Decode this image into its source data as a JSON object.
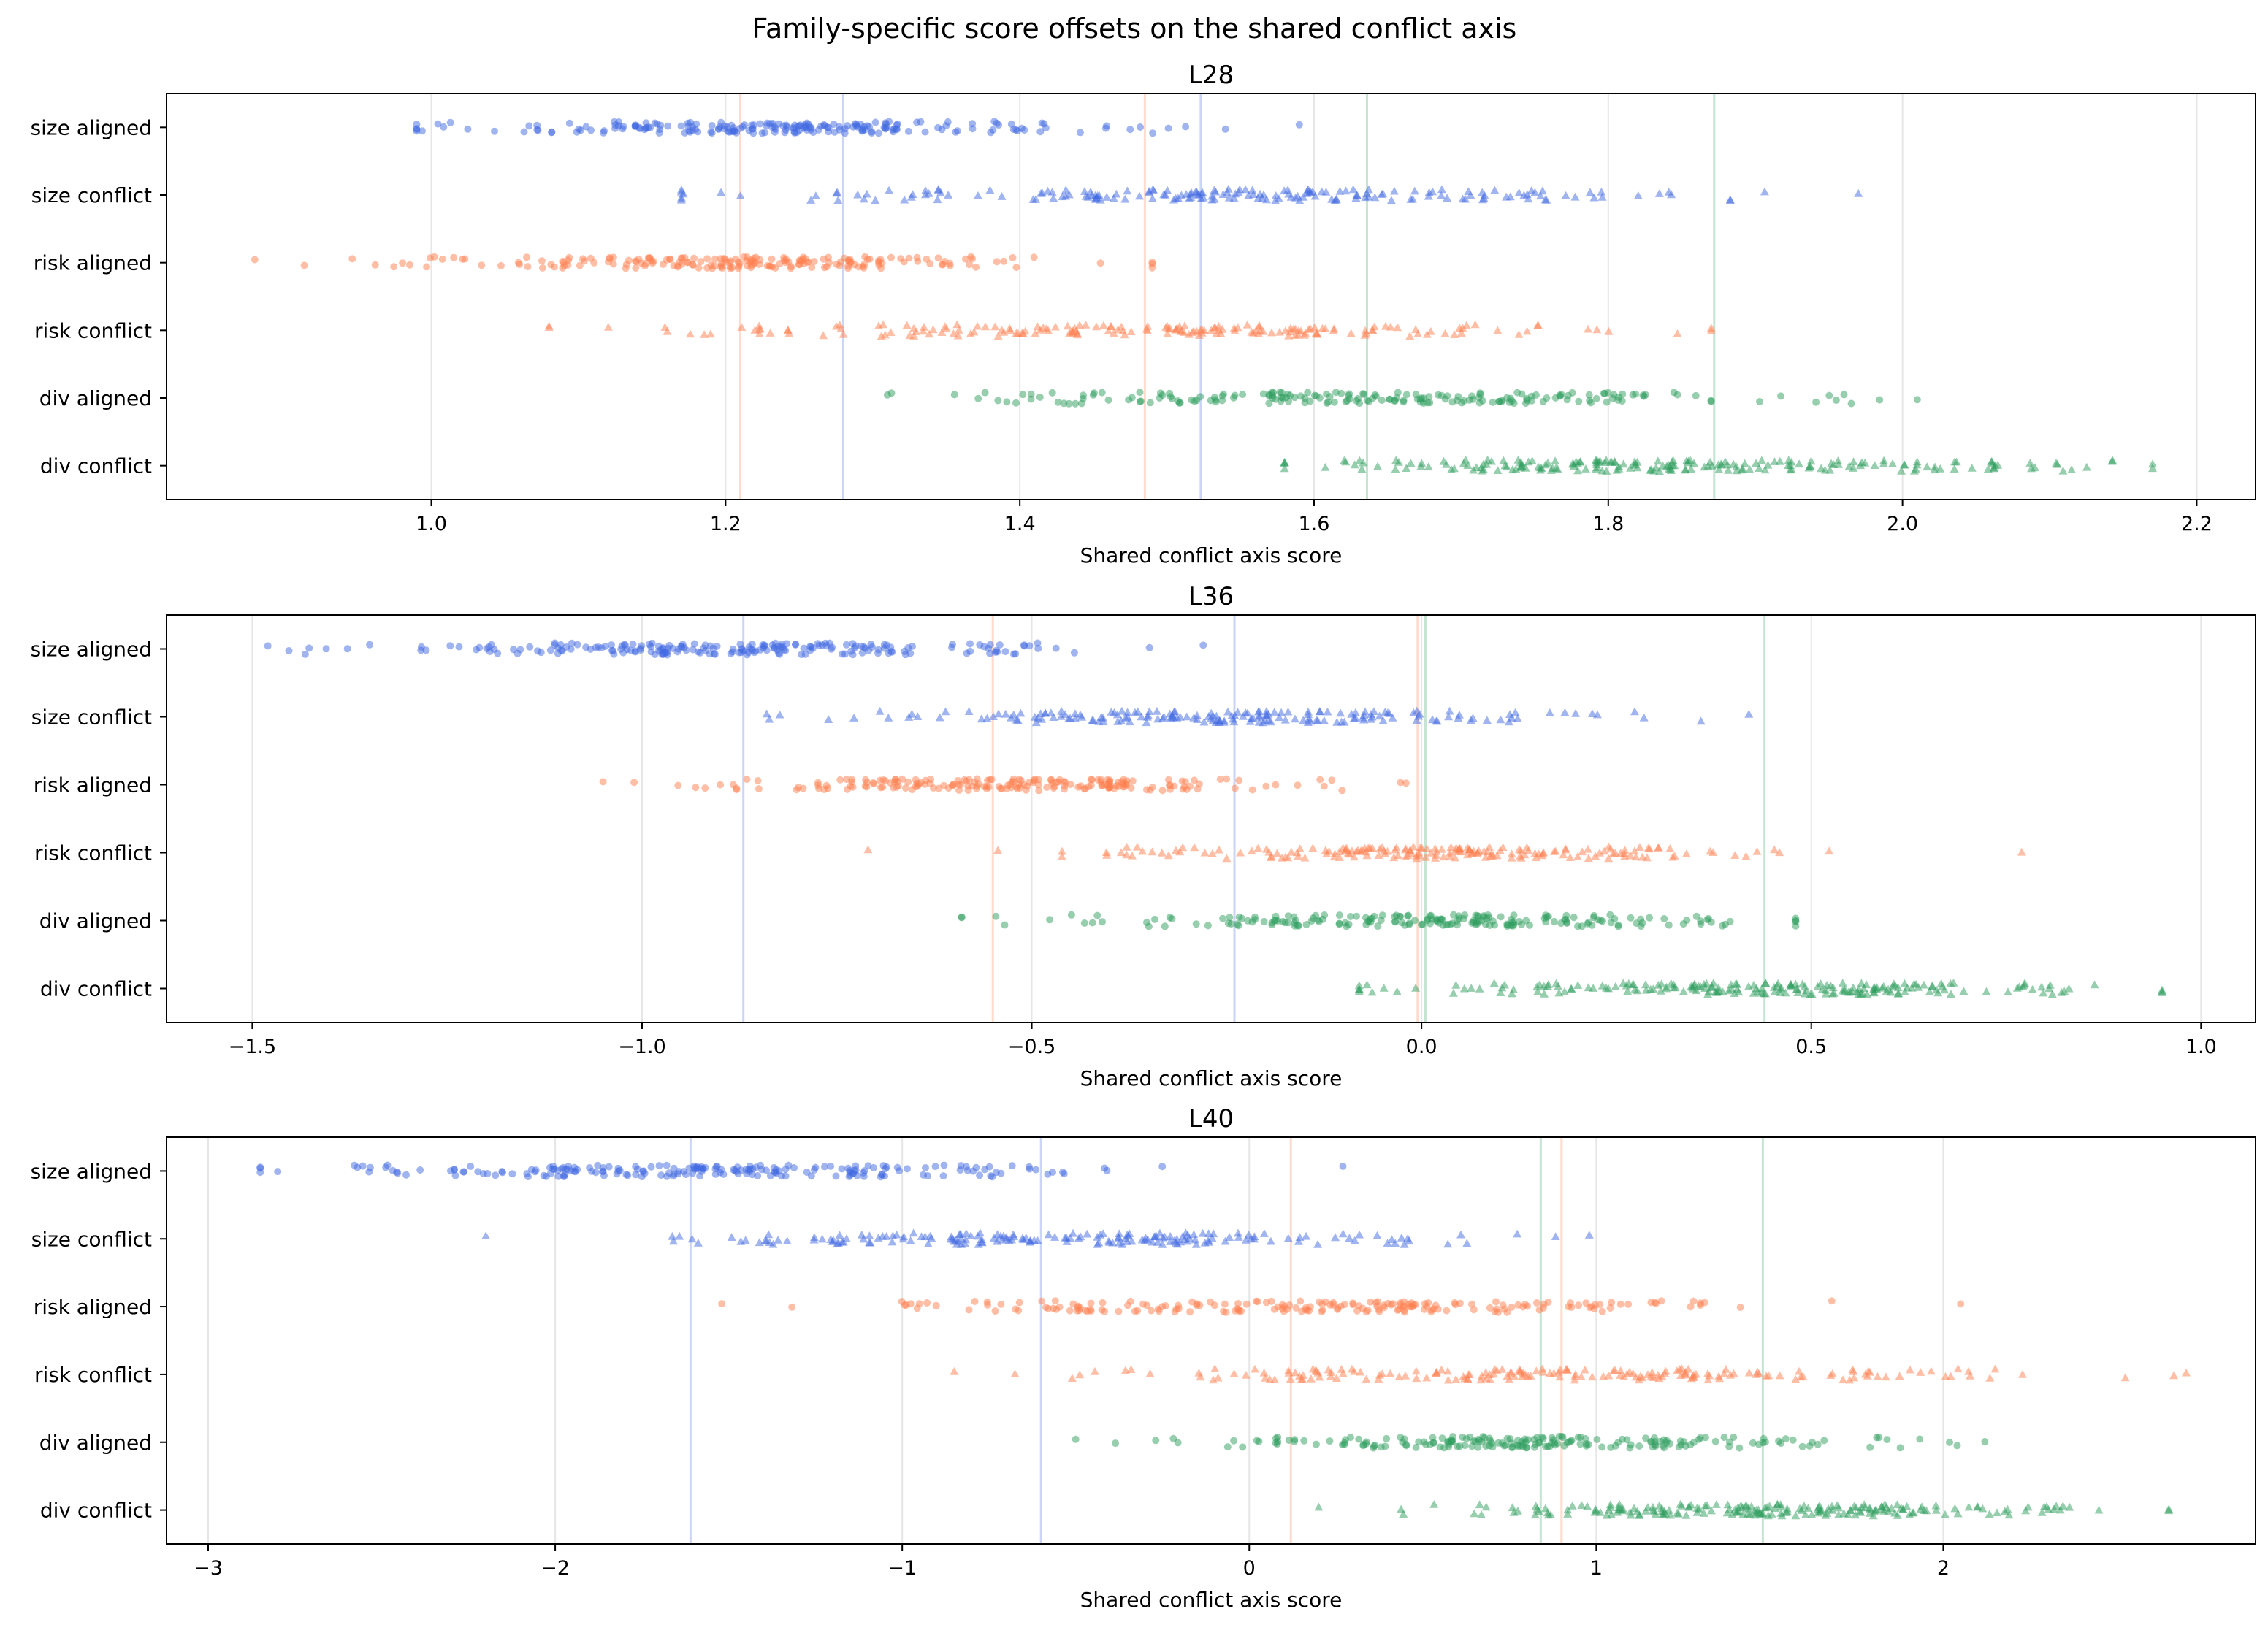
{
  "figure_title": "Family-specific score offsets on the shared conflict axis",
  "colors": {
    "size": "#4169e1",
    "risk": "#ff7f50",
    "div": "#2e9e5e",
    "grid": "#e6e6e6"
  },
  "chart_data": [
    {
      "type": "scatter",
      "title": "L28",
      "xlabel": "Shared conflict axis score",
      "ylabel": "",
      "xlim": [
        0.82,
        2.24
      ],
      "xticks": [
        1.0,
        1.2,
        1.4,
        1.6,
        1.8,
        2.0,
        2.2
      ],
      "xtick_labels": [
        "1.0",
        "1.2",
        "1.4",
        "1.6",
        "1.8",
        "2.0",
        "2.2"
      ],
      "grid": "vertical",
      "categories": [
        "size aligned",
        "size conflict",
        "risk aligned",
        "risk conflict",
        "div aligned",
        "div conflict"
      ],
      "series": [
        {
          "label": "size aligned",
          "family": "size",
          "marker": "circle",
          "min": 0.99,
          "max": 1.59,
          "center": 1.24,
          "spread": 0.11,
          "n": 210,
          "seed": 11
        },
        {
          "label": "size conflict",
          "family": "size",
          "marker": "triangle",
          "min": 1.17,
          "max": 1.97,
          "center": 1.54,
          "spread": 0.15,
          "n": 190,
          "seed": 12
        },
        {
          "label": "risk aligned",
          "family": "risk",
          "marker": "circle",
          "min": 0.88,
          "max": 1.49,
          "center": 1.2,
          "spread": 0.11,
          "n": 200,
          "seed": 13
        },
        {
          "label": "risk conflict",
          "family": "risk",
          "marker": "triangle",
          "min": 1.08,
          "max": 1.87,
          "center": 1.48,
          "spread": 0.15,
          "n": 190,
          "seed": 14
        },
        {
          "label": "div aligned",
          "family": "div",
          "marker": "circle",
          "min": 1.31,
          "max": 2.01,
          "center": 1.65,
          "spread": 0.13,
          "n": 200,
          "seed": 15
        },
        {
          "label": "div conflict",
          "family": "div",
          "marker": "triangle",
          "min": 1.58,
          "max": 2.17,
          "center": 1.85,
          "spread": 0.13,
          "n": 210,
          "seed": 16
        }
      ],
      "reference_lines": [
        {
          "family": "risk",
          "x": 1.21
        },
        {
          "family": "size",
          "x": 1.28
        },
        {
          "family": "risk",
          "x": 1.485
        },
        {
          "family": "size",
          "x": 1.523
        },
        {
          "family": "div",
          "x": 1.636
        },
        {
          "family": "div",
          "x": 1.872
        }
      ]
    },
    {
      "type": "scatter",
      "title": "L36",
      "xlabel": "Shared conflict axis score",
      "ylabel": "",
      "xlim": [
        -1.61,
        1.07
      ],
      "xticks": [
        -1.5,
        -1.0,
        -0.5,
        0.0,
        0.5,
        1.0
      ],
      "xtick_labels": [
        "−1.5",
        "−1.0",
        "−0.5",
        "0.0",
        "0.5",
        "1.0"
      ],
      "grid": "vertical",
      "categories": [
        "size aligned",
        "size conflict",
        "risk aligned",
        "risk conflict",
        "div aligned",
        "div conflict"
      ],
      "series": [
        {
          "label": "size aligned",
          "family": "size",
          "marker": "circle",
          "min": -1.48,
          "max": -0.28,
          "center": -0.87,
          "spread": 0.2,
          "n": 210,
          "seed": 21
        },
        {
          "label": "size conflict",
          "family": "size",
          "marker": "triangle",
          "min": -0.84,
          "max": 0.42,
          "center": -0.24,
          "spread": 0.22,
          "n": 190,
          "seed": 22
        },
        {
          "label": "risk aligned",
          "family": "risk",
          "marker": "circle",
          "min": -1.05,
          "max": -0.02,
          "center": -0.55,
          "spread": 0.17,
          "n": 200,
          "seed": 23
        },
        {
          "label": "risk conflict",
          "family": "risk",
          "marker": "triangle",
          "min": -0.71,
          "max": 0.77,
          "center": 0.0,
          "spread": 0.23,
          "n": 190,
          "seed": 24
        },
        {
          "label": "div aligned",
          "family": "div",
          "marker": "circle",
          "min": -0.59,
          "max": 0.48,
          "center": 0.01,
          "spread": 0.2,
          "n": 200,
          "seed": 25
        },
        {
          "label": "div conflict",
          "family": "div",
          "marker": "triangle",
          "min": -0.08,
          "max": 0.95,
          "center": 0.44,
          "spread": 0.2,
          "n": 210,
          "seed": 26
        }
      ],
      "reference_lines": [
        {
          "family": "size",
          "x": -0.87
        },
        {
          "family": "risk",
          "x": -0.55
        },
        {
          "family": "size",
          "x": -0.24
        },
        {
          "family": "risk",
          "x": -0.005
        },
        {
          "family": "div",
          "x": 0.005
        },
        {
          "family": "div",
          "x": 0.44
        }
      ]
    },
    {
      "type": "scatter",
      "title": "L40",
      "xlabel": "Shared conflict axis score",
      "ylabel": "",
      "xlim": [
        -3.12,
        2.9
      ],
      "xticks": [
        -3,
        -2,
        -1,
        0,
        1,
        2
      ],
      "xtick_labels": [
        "−3",
        "−2",
        "−1",
        "0",
        "1",
        "2"
      ],
      "grid": "vertical",
      "categories": [
        "size aligned",
        "size conflict",
        "risk aligned",
        "risk conflict",
        "div aligned",
        "div conflict"
      ],
      "series": [
        {
          "label": "size aligned",
          "family": "size",
          "marker": "circle",
          "min": -2.85,
          "max": 0.27,
          "center": -1.6,
          "spread": 0.55,
          "n": 210,
          "seed": 31
        },
        {
          "label": "size conflict",
          "family": "size",
          "marker": "triangle",
          "min": -2.2,
          "max": 0.98,
          "center": -0.6,
          "spread": 0.55,
          "n": 190,
          "seed": 32
        },
        {
          "label": "risk aligned",
          "family": "risk",
          "marker": "circle",
          "min": -1.52,
          "max": 2.05,
          "center": 0.12,
          "spread": 0.6,
          "n": 200,
          "seed": 33
        },
        {
          "label": "risk conflict",
          "family": "risk",
          "marker": "triangle",
          "min": -0.85,
          "max": 2.7,
          "center": 0.9,
          "spread": 0.65,
          "n": 190,
          "seed": 34
        },
        {
          "label": "div aligned",
          "family": "div",
          "marker": "circle",
          "min": -0.5,
          "max": 2.12,
          "center": 0.83,
          "spread": 0.5,
          "n": 200,
          "seed": 35
        },
        {
          "label": "div conflict",
          "family": "div",
          "marker": "triangle",
          "min": 0.2,
          "max": 2.65,
          "center": 1.48,
          "spread": 0.45,
          "n": 210,
          "seed": 36
        }
      ],
      "reference_lines": [
        {
          "family": "size",
          "x": -1.61
        },
        {
          "family": "size",
          "x": -0.6
        },
        {
          "family": "risk",
          "x": 0.12
        },
        {
          "family": "div",
          "x": 0.84
        },
        {
          "family": "risk",
          "x": 0.9
        },
        {
          "family": "div",
          "x": 1.48
        }
      ]
    }
  ]
}
